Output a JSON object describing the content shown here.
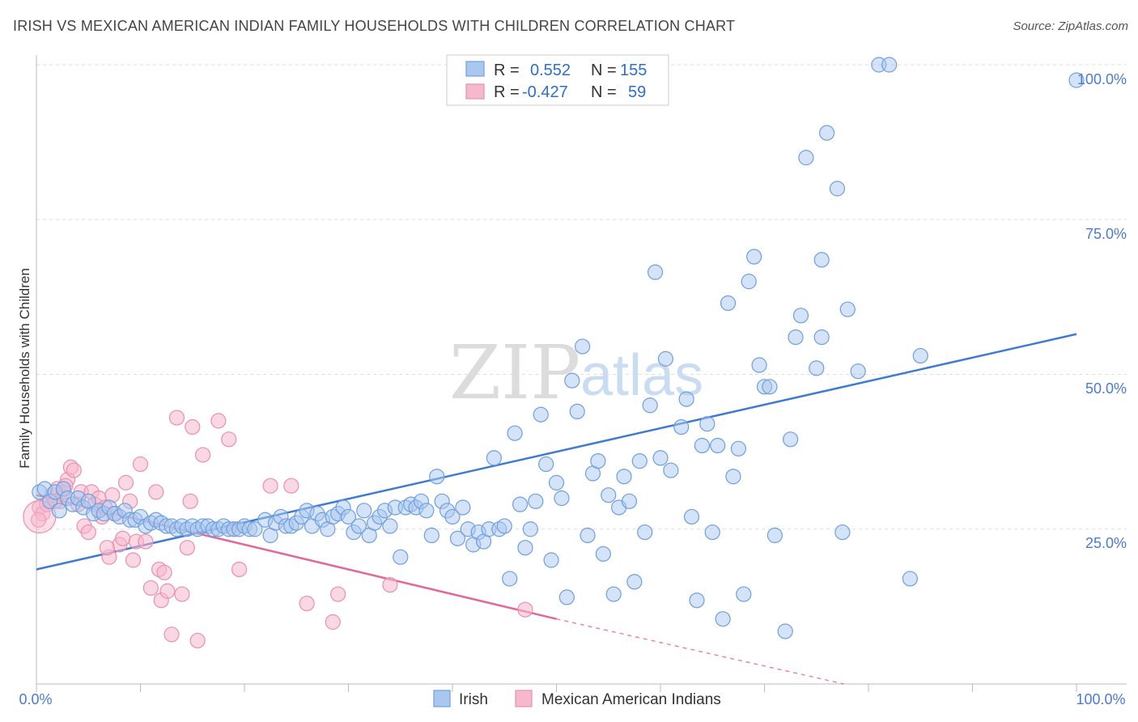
{
  "header": {
    "title": "IRISH VS MEXICAN AMERICAN INDIAN FAMILY HOUSEHOLDS WITH CHILDREN CORRELATION CHART",
    "source": "Source: ZipAtlas.com"
  },
  "watermark": {
    "zip": "ZIP",
    "atlas": "atlas"
  },
  "legend_box": {
    "rows": [
      {
        "r_label": "R =",
        "r_value": "0.552",
        "n_label": "N =",
        "n_value": "155"
      },
      {
        "r_label": "R =",
        "r_value": "-0.427",
        "n_label": "N =",
        "n_value": "59"
      }
    ]
  },
  "colors": {
    "irish_fill": "#a9c7ef",
    "irish_stroke": "#6f9fdc",
    "irish_line": "#3f7bd0",
    "mexican_fill": "#f5b8cc",
    "mexican_stroke": "#ea8fae",
    "mexican_line": "#e0699a",
    "grid": "#dddddd",
    "tick_text": "#4a7cc9"
  },
  "chart_data": {
    "type": "scatter",
    "title": "IRISH VS MEXICAN AMERICAN INDIAN FAMILY HOUSEHOLDS WITH CHILDREN CORRELATION CHART",
    "xlabel": "",
    "ylabel": "Family Households with Children",
    "xlim": [
      0,
      100
    ],
    "ylim": [
      0,
      100
    ],
    "x_tick_labels": [
      "0.0%",
      "100.0%"
    ],
    "y_ticks": [
      25,
      50,
      75,
      100
    ],
    "y_tick_labels": [
      "25.0%",
      "50.0%",
      "75.0%",
      "100.0%"
    ],
    "grid": true,
    "legend": "top-center and bottom",
    "series": [
      {
        "name": "Irish",
        "R": 0.552,
        "N": 155,
        "trend": {
          "x0": 0,
          "y0": 18.5,
          "x1": 100,
          "y1": 56.5
        },
        "points": [
          [
            0.3,
            31.0
          ],
          [
            0.8,
            31.5
          ],
          [
            1.3,
            29.5
          ],
          [
            1.8,
            31.0
          ],
          [
            2.2,
            28.0
          ],
          [
            2.6,
            31.5
          ],
          [
            3.0,
            30.0
          ],
          [
            3.5,
            29.0
          ],
          [
            4.0,
            30.0
          ],
          [
            4.5,
            28.5
          ],
          [
            5.0,
            29.5
          ],
          [
            5.5,
            27.5
          ],
          [
            6.0,
            28.0
          ],
          [
            6.5,
            27.5
          ],
          [
            7.0,
            28.5
          ],
          [
            7.5,
            27.5
          ],
          [
            8.0,
            27.0
          ],
          [
            8.5,
            28.0
          ],
          [
            9.0,
            26.5
          ],
          [
            9.5,
            26.5
          ],
          [
            10.0,
            27.0
          ],
          [
            10.5,
            25.5
          ],
          [
            11.0,
            26.0
          ],
          [
            11.5,
            26.5
          ],
          [
            12.0,
            26.0
          ],
          [
            12.5,
            25.5
          ],
          [
            13.0,
            25.5
          ],
          [
            13.5,
            25.0
          ],
          [
            14.0,
            25.5
          ],
          [
            14.5,
            25.0
          ],
          [
            15.0,
            25.5
          ],
          [
            15.5,
            25.0
          ],
          [
            16.0,
            25.5
          ],
          [
            16.5,
            25.5
          ],
          [
            17.0,
            25.0
          ],
          [
            17.5,
            25.0
          ],
          [
            18.0,
            25.5
          ],
          [
            18.5,
            25.0
          ],
          [
            19.0,
            25.0
          ],
          [
            19.5,
            25.0
          ],
          [
            20.0,
            25.5
          ],
          [
            20.5,
            25.0
          ],
          [
            21.0,
            25.0
          ],
          [
            22.0,
            26.5
          ],
          [
            22.5,
            24.0
          ],
          [
            23.0,
            26.0
          ],
          [
            23.5,
            27.0
          ],
          [
            24.0,
            25.5
          ],
          [
            24.5,
            25.5
          ],
          [
            25.0,
            26.0
          ],
          [
            25.5,
            27.0
          ],
          [
            26.0,
            28.0
          ],
          [
            26.5,
            25.5
          ],
          [
            27.0,
            27.5
          ],
          [
            27.5,
            26.5
          ],
          [
            28.0,
            25.0
          ],
          [
            28.5,
            27.0
          ],
          [
            29.0,
            27.5
          ],
          [
            29.5,
            28.5
          ],
          [
            30.0,
            27.0
          ],
          [
            30.5,
            24.5
          ],
          [
            31.0,
            25.5
          ],
          [
            31.5,
            28.0
          ],
          [
            32.0,
            24.0
          ],
          [
            32.5,
            26.0
          ],
          [
            33.0,
            27.0
          ],
          [
            33.5,
            28.0
          ],
          [
            34.0,
            25.5
          ],
          [
            34.5,
            28.5
          ],
          [
            35.0,
            20.5
          ],
          [
            35.5,
            28.5
          ],
          [
            36.0,
            29.0
          ],
          [
            36.5,
            28.5
          ],
          [
            37.0,
            29.5
          ],
          [
            37.5,
            28.0
          ],
          [
            38.0,
            24.0
          ],
          [
            38.5,
            33.5
          ],
          [
            39.0,
            29.5
          ],
          [
            39.5,
            28.0
          ],
          [
            40.0,
            27.0
          ],
          [
            40.5,
            23.5
          ],
          [
            41.0,
            28.5
          ],
          [
            41.5,
            25.0
          ],
          [
            42.0,
            22.5
          ],
          [
            42.5,
            24.5
          ],
          [
            43.0,
            23.0
          ],
          [
            43.5,
            25.0
          ],
          [
            44.0,
            36.5
          ],
          [
            44.5,
            25.0
          ],
          [
            45.0,
            25.5
          ],
          [
            45.5,
            17.0
          ],
          [
            46.0,
            40.5
          ],
          [
            46.5,
            29.0
          ],
          [
            47.0,
            22.0
          ],
          [
            47.5,
            25.0
          ],
          [
            48.0,
            29.5
          ],
          [
            48.5,
            43.5
          ],
          [
            49.0,
            35.5
          ],
          [
            49.5,
            20.0
          ],
          [
            50.0,
            32.5
          ],
          [
            50.5,
            30.0
          ],
          [
            51.0,
            14.0
          ],
          [
            51.5,
            49.0
          ],
          [
            52.0,
            44.0
          ],
          [
            52.5,
            54.5
          ],
          [
            53.0,
            24.0
          ],
          [
            53.5,
            34.0
          ],
          [
            54.0,
            36.0
          ],
          [
            54.5,
            21.0
          ],
          [
            55.0,
            30.5
          ],
          [
            55.5,
            14.5
          ],
          [
            56.0,
            28.5
          ],
          [
            56.5,
            33.5
          ],
          [
            57.0,
            29.5
          ],
          [
            57.5,
            16.5
          ],
          [
            58.0,
            36.0
          ],
          [
            58.5,
            24.5
          ],
          [
            59.0,
            45.0
          ],
          [
            59.5,
            66.5
          ],
          [
            60.0,
            36.5
          ],
          [
            60.5,
            52.5
          ],
          [
            61.0,
            34.5
          ],
          [
            62.0,
            41.5
          ],
          [
            62.5,
            46.0
          ],
          [
            63.0,
            27.0
          ],
          [
            63.5,
            13.5
          ],
          [
            64.0,
            38.5
          ],
          [
            64.5,
            42.0
          ],
          [
            65.0,
            24.5
          ],
          [
            65.5,
            38.5
          ],
          [
            66.0,
            10.5
          ],
          [
            66.5,
            61.5
          ],
          [
            67.0,
            33.5
          ],
          [
            67.5,
            38.0
          ],
          [
            68.0,
            14.5
          ],
          [
            68.5,
            65.0
          ],
          [
            69.0,
            69.0
          ],
          [
            69.5,
            51.5
          ],
          [
            70.0,
            48.0
          ],
          [
            70.5,
            48.0
          ],
          [
            71.0,
            24.0
          ],
          [
            72.0,
            8.5
          ],
          [
            72.5,
            39.5
          ],
          [
            73.0,
            56.0
          ],
          [
            73.5,
            59.5
          ],
          [
            74.0,
            85.0
          ],
          [
            75.0,
            51.0
          ],
          [
            75.5,
            56.0
          ],
          [
            75.5,
            68.5
          ],
          [
            76.0,
            89.0
          ],
          [
            77.0,
            80.0
          ],
          [
            77.5,
            24.5
          ],
          [
            78.0,
            60.5
          ],
          [
            79.0,
            50.5
          ],
          [
            81.0,
            100.0
          ],
          [
            82.0,
            100.0
          ],
          [
            84.0,
            17.0
          ],
          [
            85.0,
            53.0
          ],
          [
            100.0,
            97.5
          ]
        ]
      },
      {
        "name": "Mexican American Indians",
        "R": -0.427,
        "N": 59,
        "trend": {
          "x0": 0,
          "y0": 30.5,
          "x1": 50,
          "y1": 10.5,
          "dash_to_x": 100,
          "dash_to_y": -8.5
        },
        "points": [
          [
            0.3,
            28.5
          ],
          [
            0.6,
            27.5
          ],
          [
            1.0,
            29.0
          ],
          [
            1.5,
            30.5
          ],
          [
            2.0,
            31.5
          ],
          [
            2.3,
            29.5
          ],
          [
            2.6,
            31.0
          ],
          [
            3.0,
            33.0
          ],
          [
            3.3,
            35.0
          ],
          [
            3.6,
            34.5
          ],
          [
            4.0,
            29.0
          ],
          [
            4.3,
            31.0
          ],
          [
            4.6,
            25.5
          ],
          [
            5.0,
            24.5
          ],
          [
            5.3,
            31.0
          ],
          [
            5.6,
            29.0
          ],
          [
            6.0,
            30.0
          ],
          [
            6.3,
            27.0
          ],
          [
            6.6,
            28.5
          ],
          [
            7.0,
            20.5
          ],
          [
            7.3,
            30.5
          ],
          [
            7.6,
            27.5
          ],
          [
            8.0,
            22.5
          ],
          [
            8.3,
            23.5
          ],
          [
            8.6,
            32.5
          ],
          [
            9.0,
            29.5
          ],
          [
            9.3,
            20.0
          ],
          [
            9.6,
            23.0
          ],
          [
            10.0,
            35.5
          ],
          [
            10.5,
            23.0
          ],
          [
            11.0,
            15.5
          ],
          [
            11.5,
            31.0
          ],
          [
            11.8,
            18.5
          ],
          [
            12.0,
            13.5
          ],
          [
            12.3,
            18.0
          ],
          [
            12.6,
            15.0
          ],
          [
            13.0,
            8.0
          ],
          [
            13.5,
            43.0
          ],
          [
            14.0,
            14.5
          ],
          [
            14.5,
            22.0
          ],
          [
            14.8,
            29.5
          ],
          [
            15.0,
            41.5
          ],
          [
            15.5,
            7.0
          ],
          [
            16.0,
            37.0
          ],
          [
            17.5,
            42.5
          ],
          [
            18.5,
            39.5
          ],
          [
            19.0,
            25.0
          ],
          [
            19.5,
            18.5
          ],
          [
            22.5,
            32.0
          ],
          [
            24.5,
            32.0
          ],
          [
            26.0,
            13.0
          ],
          [
            28.5,
            10.0
          ],
          [
            29.0,
            14.5
          ],
          [
            34.0,
            16.0
          ],
          [
            47.0,
            12.0
          ],
          [
            0.2,
            26.5
          ],
          [
            1.8,
            29.5
          ],
          [
            2.8,
            32.0
          ],
          [
            6.8,
            22.0
          ]
        ]
      }
    ]
  },
  "bottom_legend": {
    "items": [
      "Irish",
      "Mexican American Indians"
    ]
  }
}
